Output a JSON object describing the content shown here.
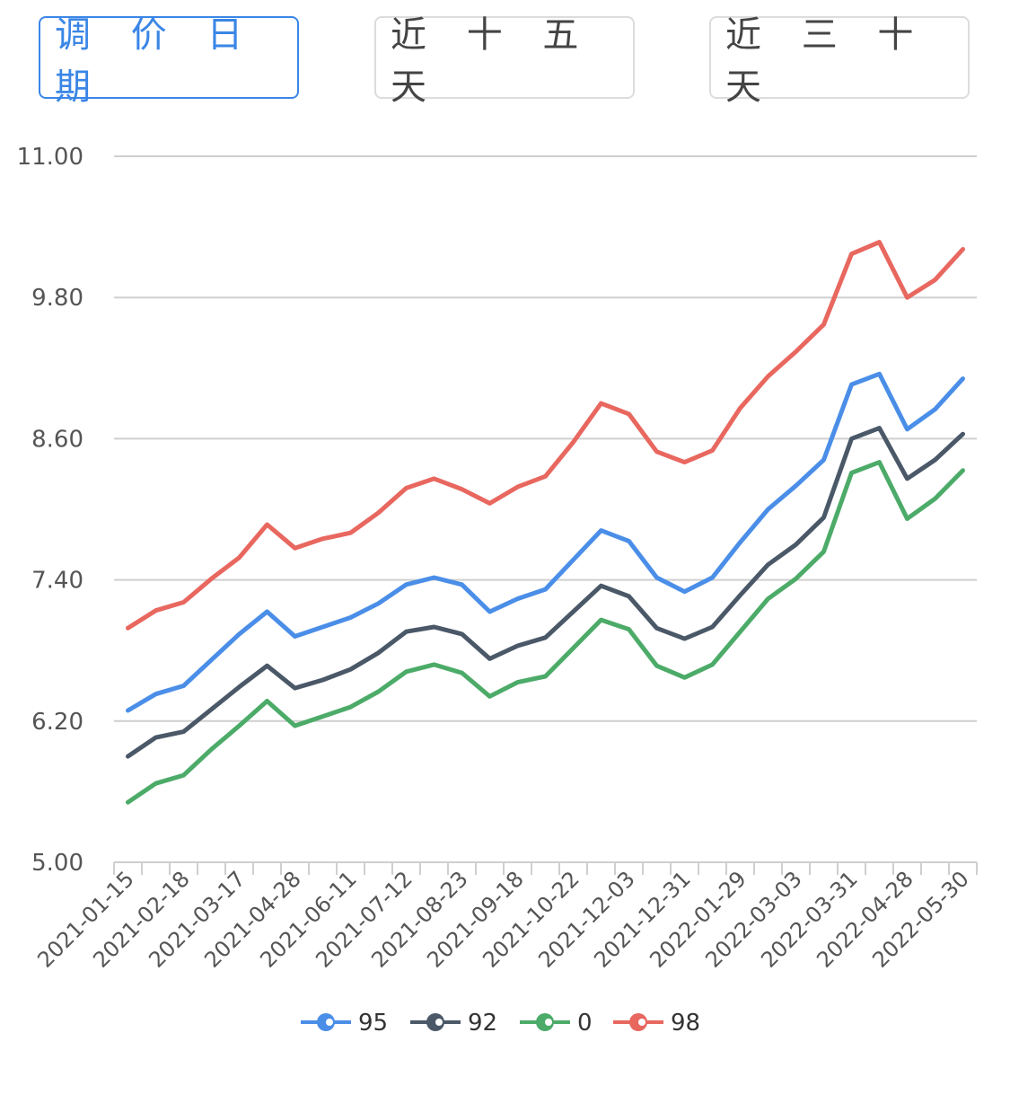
{
  "tabs": [
    {
      "label": "调 价 日 期",
      "active": true
    },
    {
      "label": "近 十 五 天",
      "active": false
    },
    {
      "label": "近 三 十 天",
      "active": false
    }
  ],
  "chart_data": {
    "type": "line",
    "ylim": [
      5.0,
      11.0
    ],
    "yticks": [
      "5.00",
      "6.20",
      "7.40",
      "8.60",
      "9.80",
      "11.00"
    ],
    "grid": true,
    "legend_position": "bottom",
    "x": [
      "2021-01-15",
      "",
      "2021-02-18",
      "",
      "2021-03-17",
      "",
      "2021-04-28",
      "",
      "2021-06-11",
      "",
      "2021-07-12",
      "",
      "2021-08-23",
      "",
      "2021-09-18",
      "",
      "2021-10-22",
      "",
      "2021-12-03",
      "",
      "2021-12-31",
      "",
      "2022-01-29",
      "",
      "2022-03-03",
      "",
      "2022-03-31",
      "",
      "2022-04-28",
      "",
      "2022-05-30"
    ],
    "x_tick_labels": [
      "2021-01-15",
      "2021-02-18",
      "2021-03-17",
      "2021-04-28",
      "2021-06-11",
      "2021-07-12",
      "2021-08-23",
      "2021-09-18",
      "2021-10-22",
      "2021-12-03",
      "2021-12-31",
      "2022-01-29",
      "2022-03-03",
      "2022-03-31",
      "2022-04-28",
      "2022-05-30"
    ],
    "series": [
      {
        "name": "95",
        "color": "#4a8ee8",
        "values": [
          6.29,
          6.43,
          6.5,
          6.72,
          6.94,
          7.13,
          6.92,
          7.0,
          7.08,
          7.2,
          7.36,
          7.42,
          7.36,
          7.13,
          7.24,
          7.32,
          7.57,
          7.82,
          7.73,
          7.42,
          7.3,
          7.42,
          7.72,
          8.0,
          8.2,
          8.42,
          9.06,
          9.15,
          8.68,
          8.85,
          9.11
        ]
      },
      {
        "name": "92",
        "color": "#4a5868",
        "values": [
          5.9,
          6.06,
          6.11,
          6.3,
          6.49,
          6.67,
          6.48,
          6.55,
          6.64,
          6.78,
          6.96,
          7.0,
          6.94,
          6.73,
          6.84,
          6.91,
          7.13,
          7.35,
          7.26,
          6.99,
          6.9,
          7.0,
          7.27,
          7.53,
          7.7,
          7.93,
          8.6,
          8.69,
          8.26,
          8.42,
          8.64
        ]
      },
      {
        "name": "0",
        "color": "#4cab68",
        "values": [
          5.51,
          5.67,
          5.74,
          5.96,
          6.16,
          6.37,
          6.16,
          6.24,
          6.32,
          6.45,
          6.62,
          6.68,
          6.61,
          6.41,
          6.53,
          6.58,
          6.82,
          7.06,
          6.98,
          6.67,
          6.57,
          6.68,
          6.96,
          7.24,
          7.41,
          7.64,
          8.31,
          8.4,
          7.92,
          8.09,
          8.33
        ]
      },
      {
        "name": "98",
        "color": "#e8675f",
        "values": [
          6.99,
          7.14,
          7.21,
          7.41,
          7.59,
          7.87,
          7.67,
          7.75,
          7.8,
          7.97,
          8.18,
          8.26,
          8.17,
          8.05,
          8.19,
          8.28,
          8.57,
          8.9,
          8.81,
          8.49,
          8.4,
          8.5,
          8.86,
          9.13,
          9.34,
          9.57,
          10.17,
          10.27,
          9.8,
          9.95,
          10.21
        ]
      }
    ]
  }
}
